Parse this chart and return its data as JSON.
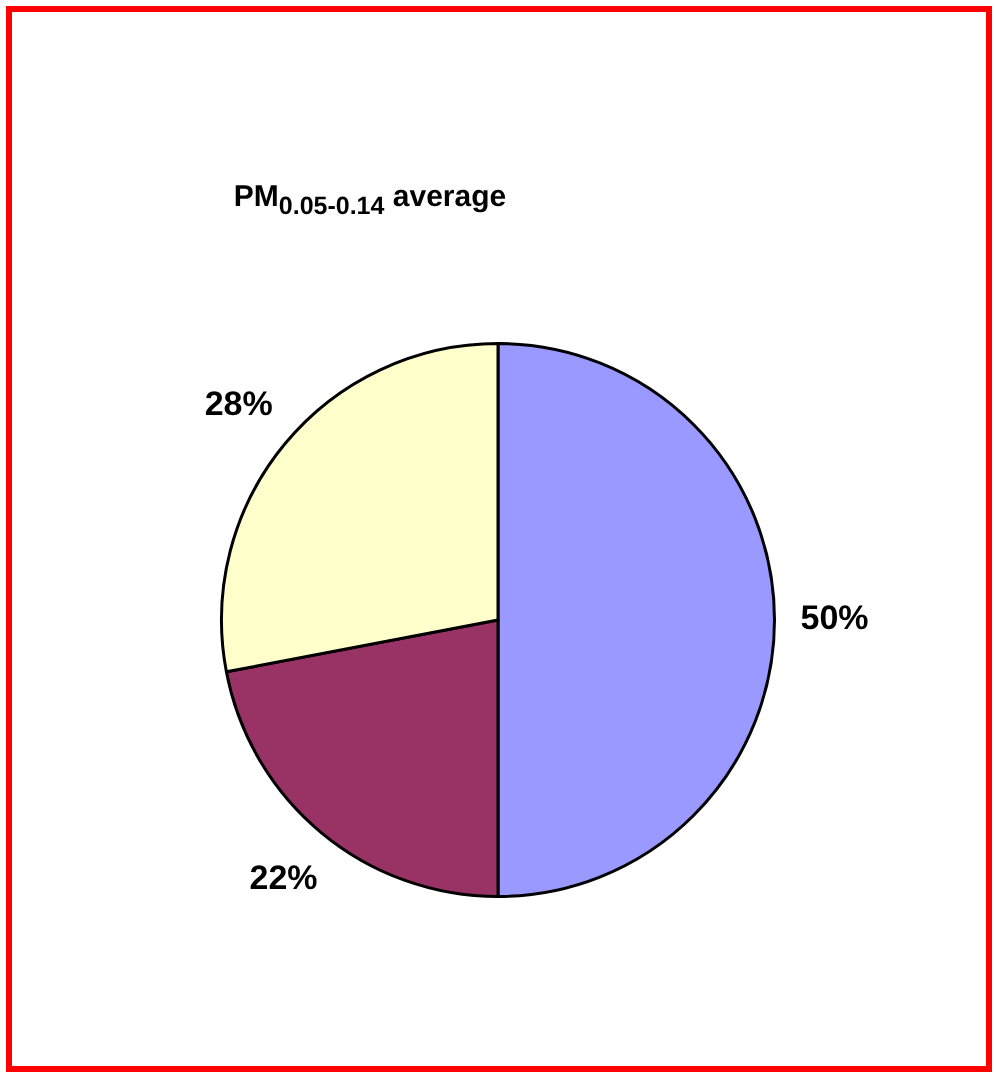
{
  "chart_data": {
    "type": "pie",
    "title": "PM$_{0.05-0.14}$ average",
    "categories": [
      null,
      null,
      null
    ],
    "values": [
      50,
      22,
      28
    ],
    "colors": [
      "#9999ff",
      "#993366",
      "#ffffcc"
    ],
    "value_labels": [
      "50%",
      "22%",
      "28%"
    ],
    "legend": false
  }
}
